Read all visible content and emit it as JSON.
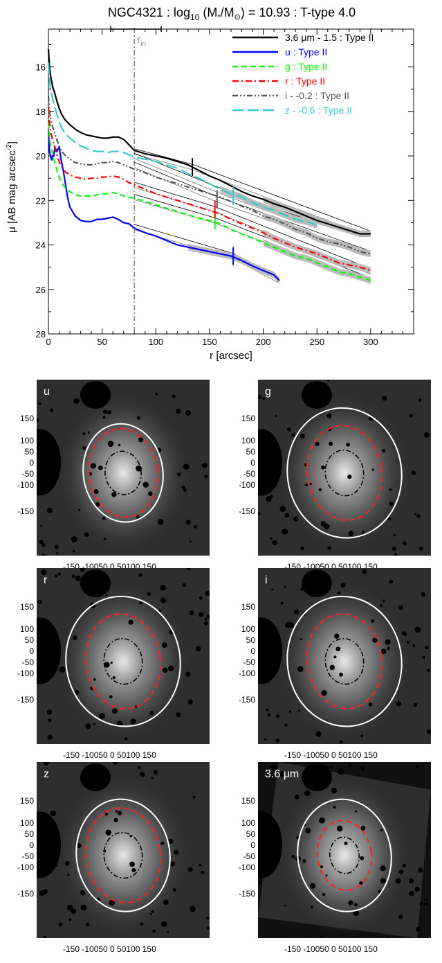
{
  "chart_data": [
    {
      "type": "line",
      "title_main": "NGC4321 : log",
      "title_sub": "10",
      "title_rest": " (M",
      "title_star": "*",
      "title_mid": "/M",
      "title_sun": "⊙",
      "title_end": ") = 10.93 : T-type 4.0",
      "xlabel": "r [arcsec]",
      "ylabel_main": "μ [AB mag arcsec",
      "ylabel_sup": "-2",
      "ylabel_end": "]",
      "xlim": [
        0,
        340
      ],
      "ylim": [
        28,
        14.3
      ],
      "y_inverted": true,
      "xticks": [
        0,
        50,
        100,
        150,
        200,
        250,
        300
      ],
      "yticks": [
        16,
        18,
        20,
        22,
        24,
        26,
        28
      ],
      "r_in": 80,
      "r_in_label": "r",
      "r_in_sub": "in",
      "r_in_bar": [
        58,
        105
      ],
      "legend_placement": "top-right",
      "series": [
        {
          "name": "3.6 μm - 1.5 : Type II",
          "color": "#000000",
          "dash": "solid",
          "x": [
            0,
            1,
            2,
            4,
            6,
            8,
            10,
            12,
            15,
            20,
            25,
            30,
            35,
            40,
            45,
            50,
            55,
            60,
            65,
            70,
            75,
            80,
            90,
            100,
            110,
            120,
            130,
            140,
            150,
            160,
            170,
            180,
            190,
            200,
            210,
            220,
            230,
            240,
            250,
            260,
            270,
            280,
            290,
            300
          ],
          "y": [
            15.2,
            16.0,
            16.4,
            16.9,
            17.2,
            17.55,
            17.85,
            18.1,
            18.35,
            18.6,
            18.8,
            18.95,
            19.05,
            19.1,
            19.15,
            19.2,
            19.2,
            19.15,
            19.15,
            19.25,
            19.5,
            19.75,
            19.9,
            20.0,
            20.1,
            20.25,
            20.4,
            20.65,
            20.9,
            21.1,
            21.35,
            21.6,
            21.8,
            21.95,
            22.15,
            22.3,
            22.5,
            22.7,
            22.9,
            23.05,
            23.2,
            23.35,
            23.5,
            23.5
          ],
          "x_break": 134,
          "y_break": 20.5,
          "fit_inner": [
            [
              80,
              19.8
            ],
            [
              134,
              20.5
            ]
          ],
          "fit_outer": [
            [
              134,
              20.5
            ],
            [
              300,
              23.5
            ]
          ]
        },
        {
          "name": "u : Type II",
          "color": "#0000ff",
          "dash": "solid",
          "x": [
            0,
            1,
            2,
            3,
            4,
            5,
            6,
            8,
            10,
            12,
            14,
            16,
            18,
            20,
            25,
            30,
            35,
            40,
            45,
            50,
            55,
            60,
            65,
            70,
            75,
            80,
            90,
            100,
            110,
            120,
            130,
            140,
            150,
            160,
            170,
            180,
            190,
            200,
            210,
            215
          ],
          "y": [
            18.9,
            19.8,
            20.0,
            20.2,
            20.0,
            20.0,
            19.6,
            19.8,
            19.6,
            20.2,
            20.7,
            21.3,
            21.9,
            22.3,
            22.7,
            22.9,
            22.95,
            22.95,
            22.85,
            22.85,
            22.8,
            22.75,
            22.85,
            23.0,
            23.05,
            23.25,
            23.45,
            23.6,
            23.8,
            24.0,
            24.1,
            24.2,
            24.3,
            24.4,
            24.5,
            24.7,
            24.95,
            25.15,
            25.35,
            25.6
          ],
          "x_break": 172,
          "y_break": 24.5,
          "fit_inner": [
            [
              80,
              23.2
            ],
            [
              172,
              24.5
            ]
          ],
          "fit_outer": [
            [
              172,
              24.5
            ],
            [
              215,
              25.6
            ]
          ]
        },
        {
          "name": "g : Type II",
          "color": "#00ff00",
          "dash": "dash",
          "x": [
            0,
            1,
            2,
            4,
            6,
            8,
            10,
            12,
            15,
            20,
            25,
            30,
            35,
            40,
            45,
            50,
            55,
            60,
            65,
            70,
            75,
            80,
            90,
            100,
            110,
            120,
            130,
            140,
            150,
            160,
            170,
            180,
            190,
            200,
            210,
            220,
            230,
            240,
            250,
            260,
            270,
            280,
            290,
            300
          ],
          "y": [
            18.5,
            19.2,
            19.5,
            19.9,
            20.3,
            20.65,
            20.95,
            21.15,
            21.4,
            21.6,
            21.75,
            21.8,
            21.8,
            21.8,
            21.75,
            21.7,
            21.7,
            21.65,
            21.7,
            21.8,
            21.85,
            21.9,
            22.05,
            22.2,
            22.35,
            22.5,
            22.65,
            22.8,
            22.9,
            23.05,
            23.3,
            23.5,
            23.7,
            23.9,
            24.1,
            24.3,
            24.5,
            24.6,
            24.8,
            25.0,
            25.2,
            25.3,
            25.45,
            25.6
          ],
          "x_break": 155,
          "y_break": 22.9,
          "fit_inner": [
            [
              80,
              21.85
            ],
            [
              155,
              22.9
            ]
          ],
          "fit_outer": [
            [
              155,
              22.9
            ],
            [
              300,
              25.6
            ]
          ]
        },
        {
          "name": "r : Type II",
          "color": "#ff0000",
          "dash": "dashdot",
          "x": [
            0,
            1,
            2,
            4,
            6,
            8,
            10,
            12,
            15,
            20,
            25,
            30,
            35,
            40,
            45,
            50,
            55,
            60,
            65,
            70,
            75,
            80,
            90,
            100,
            110,
            120,
            130,
            140,
            150,
            160,
            170,
            180,
            190,
            200,
            210,
            220,
            230,
            240,
            250,
            260,
            270,
            280,
            290,
            300
          ],
          "y": [
            17.8,
            18.5,
            18.9,
            19.3,
            19.65,
            19.95,
            20.25,
            20.45,
            20.7,
            20.85,
            20.95,
            21.0,
            21.05,
            21.0,
            21.0,
            20.95,
            20.95,
            20.9,
            20.95,
            21.05,
            21.2,
            21.3,
            21.5,
            21.7,
            21.85,
            22.0,
            22.15,
            22.3,
            22.45,
            22.6,
            22.85,
            23.05,
            23.25,
            23.45,
            23.7,
            23.9,
            24.1,
            24.25,
            24.4,
            24.6,
            24.8,
            24.9,
            25.0,
            25.15
          ],
          "x_break": 155,
          "y_break": 22.4,
          "fit_inner": [
            [
              80,
              21.3
            ],
            [
              155,
              22.4
            ]
          ],
          "fit_outer": [
            [
              155,
              22.4
            ],
            [
              300,
              25.2
            ]
          ]
        },
        {
          "name": "i - -0.2 : Type II",
          "color": "#555555",
          "dash": "dashdotdot",
          "x": [
            0,
            1,
            2,
            4,
            6,
            8,
            10,
            12,
            15,
            20,
            25,
            30,
            35,
            40,
            45,
            50,
            55,
            60,
            65,
            70,
            75,
            80,
            90,
            100,
            110,
            120,
            130,
            140,
            150,
            160,
            170,
            180,
            190,
            200,
            210,
            220,
            230,
            240,
            250,
            260,
            270,
            280,
            290,
            300
          ],
          "y": [
            17.3,
            18.0,
            18.3,
            18.7,
            19.0,
            19.3,
            19.55,
            19.75,
            19.95,
            20.15,
            20.3,
            20.35,
            20.4,
            20.4,
            20.35,
            20.3,
            20.3,
            20.25,
            20.3,
            20.4,
            20.5,
            20.6,
            20.75,
            20.95,
            21.1,
            21.25,
            21.4,
            21.55,
            21.7,
            21.85,
            22.05,
            22.25,
            22.45,
            22.7,
            22.85,
            23.05,
            23.3,
            23.45,
            23.7,
            23.85,
            23.95,
            24.1,
            24.3,
            24.4
          ],
          "x_break": 157,
          "y_break": 21.95,
          "fit_inner": [
            [
              80,
              20.4
            ],
            [
              157,
              21.95
            ]
          ],
          "fit_outer": [
            [
              157,
              21.95
            ],
            [
              300,
              24.4
            ]
          ]
        },
        {
          "name": "z - -0.6 : Type II",
          "color": "#33cccc",
          "dash": "longdash",
          "x": [
            0,
            1,
            2,
            4,
            6,
            8,
            10,
            12,
            15,
            20,
            25,
            30,
            35,
            40,
            45,
            50,
            55,
            60,
            65,
            70,
            75,
            80,
            90,
            100,
            110,
            120,
            130,
            140,
            150,
            160,
            170,
            180,
            190,
            200,
            210,
            220,
            230,
            240,
            250
          ],
          "y": [
            15.8,
            16.6,
            17.0,
            17.45,
            17.8,
            18.15,
            18.45,
            18.7,
            18.95,
            19.2,
            19.4,
            19.55,
            19.65,
            19.75,
            19.8,
            19.8,
            19.85,
            19.8,
            19.8,
            19.85,
            19.95,
            20.05,
            20.15,
            20.25,
            20.4,
            20.55,
            20.8,
            21.0,
            21.25,
            21.5,
            21.7,
            21.85,
            22.1,
            22.3,
            22.45,
            22.65,
            22.85,
            22.95,
            23.1
          ],
          "x_break": 172,
          "y_break": 21.8,
          "fit_inner": [
            [
              80,
              20.0
            ],
            [
              172,
              21.8
            ]
          ],
          "fit_outer": [
            [
              172,
              21.8
            ],
            [
              248,
              23.1
            ]
          ]
        }
      ]
    }
  ],
  "images": {
    "tick_labels": [
      "150",
      "100",
      "50",
      "0",
      "-50",
      "-100",
      "-150"
    ],
    "x_tick_text": "-150  -10050 0  50100   150",
    "panels": [
      {
        "label": "u",
        "ellipse_outer": [
          0.46,
          0.56
        ],
        "ellipse_red": [
          0.33,
          0.42
        ],
        "ellipse_black": [
          0.16,
          0.19
        ],
        "tilt": -8
      },
      {
        "label": "g",
        "ellipse_outer": [
          0.66,
          0.74
        ],
        "ellipse_red": [
          0.36,
          0.45
        ],
        "ellipse_black": [
          0.17,
          0.2
        ],
        "tilt": -8
      },
      {
        "label": "r",
        "ellipse_outer": [
          0.66,
          0.74
        ],
        "ellipse_red": [
          0.36,
          0.45
        ],
        "ellipse_black": [
          0.17,
          0.2
        ],
        "tilt": -8
      },
      {
        "label": "i",
        "ellipse_outer": [
          0.66,
          0.74
        ],
        "ellipse_red": [
          0.36,
          0.45
        ],
        "ellipse_black": [
          0.17,
          0.2
        ],
        "tilt": -8
      },
      {
        "label": "z",
        "ellipse_outer": [
          0.54,
          0.64
        ],
        "ellipse_red": [
          0.36,
          0.45
        ],
        "ellipse_black": [
          0.17,
          0.2
        ],
        "tilt": -8
      },
      {
        "label": "3.6 μm",
        "ellipse_outer": [
          0.54,
          0.64
        ],
        "ellipse_red": [
          0.26,
          0.33
        ],
        "ellipse_black": [
          0.13,
          0.16
        ],
        "tilt": -8
      }
    ]
  }
}
